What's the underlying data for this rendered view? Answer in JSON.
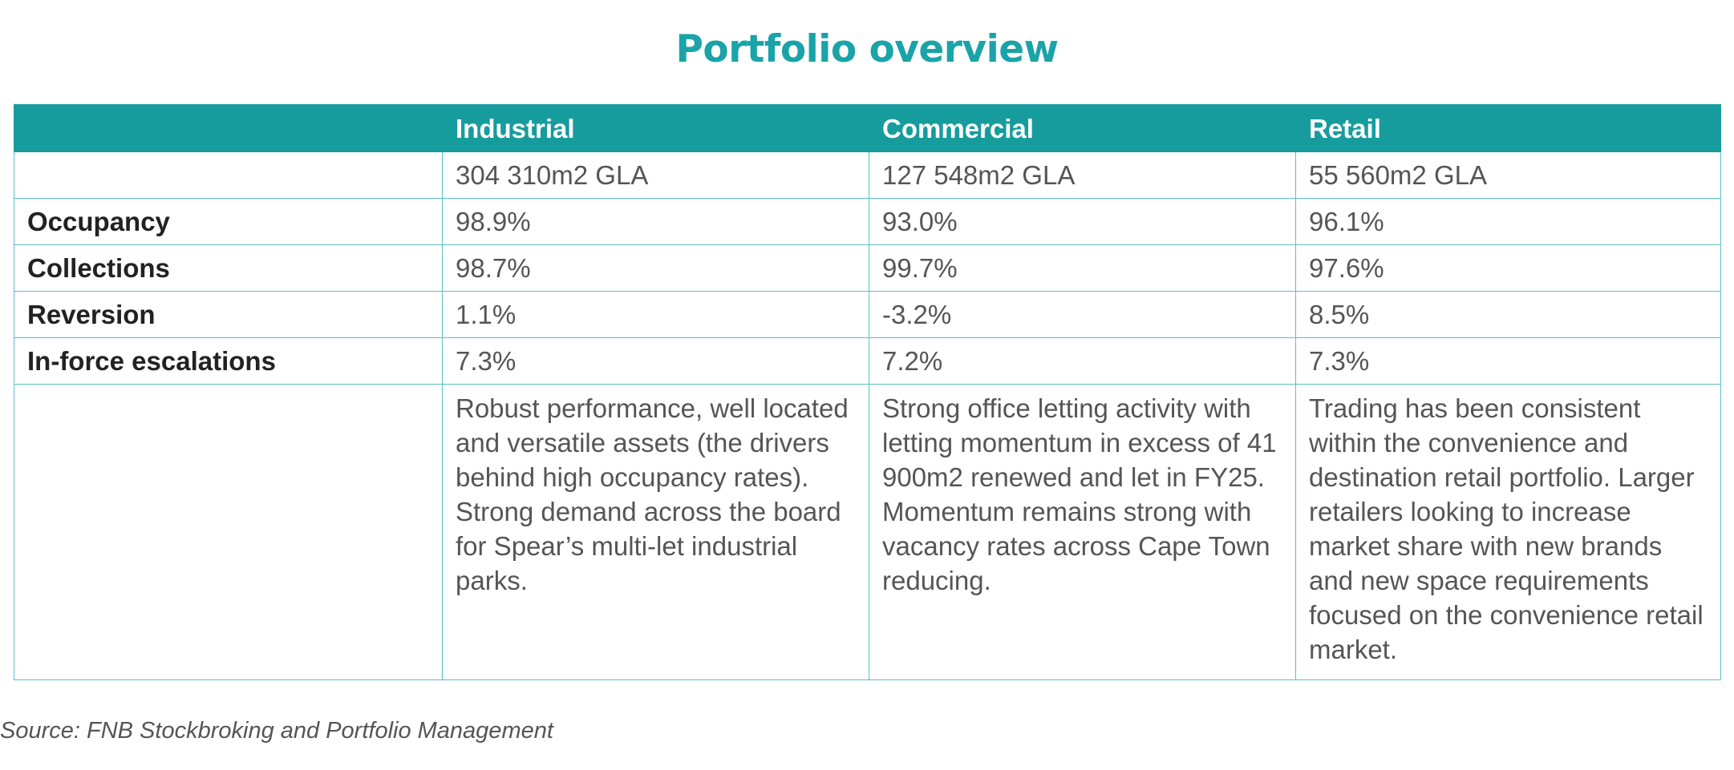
{
  "title": "Portfolio overview",
  "table": {
    "headers": [
      "",
      "Industrial",
      "Commercial",
      "Retail"
    ],
    "gla": {
      "label": "",
      "values": [
        "304 310m2 GLA",
        "127 548m2 GLA",
        "55 560m2 GLA"
      ]
    },
    "rows": [
      {
        "label": "Occupancy",
        "values": [
          "98.9%",
          "93.0%",
          "96.1%"
        ]
      },
      {
        "label": "Collections",
        "values": [
          "98.7%",
          "99.7%",
          "97.6%"
        ]
      },
      {
        "label": "Reversion",
        "values": [
          "1.1%",
          "-3.2%",
          "8.5%"
        ]
      },
      {
        "label": "In-force escalations",
        "values": [
          "7.3%",
          "7.2%",
          "7.3%"
        ]
      }
    ],
    "descriptions": {
      "label": "",
      "values": [
        "Robust performance, well located and versatile assets (the drivers behind high occupancy rates). Strong demand across the board for Spear’s multi-let industrial parks.",
        "Strong office letting activity with letting momentum in excess of 41 900m2 renewed and let in FY25. Momentum remains strong with vacancy rates across Cape Town reducing.",
        "Trading has been consistent within the convenience and destination retail portfolio. Larger retailers looking to increase market share with new brands and new space requirements focused on the convenience retail market."
      ]
    }
  },
  "source": "Source: FNB Stockbroking and Portfolio Management",
  "colors": {
    "accent": "#1aa3a8",
    "header_bg": "#179c9e",
    "border": "#5bbfc3",
    "text": "#555555",
    "label_text": "#222222"
  }
}
